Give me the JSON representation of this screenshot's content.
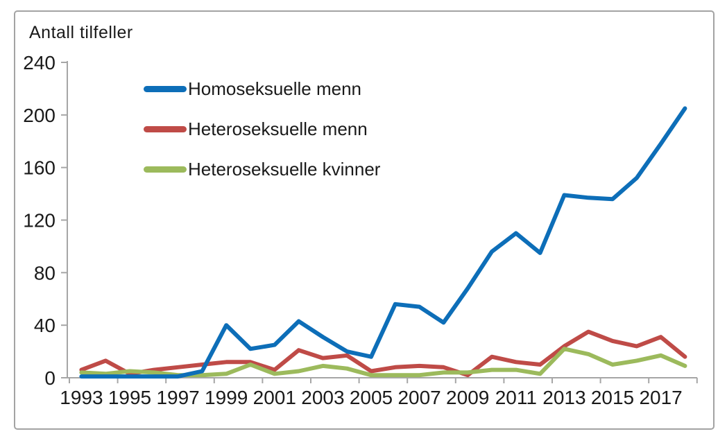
{
  "chart_data": {
    "type": "line",
    "title": "Antall tilfeller",
    "ylabel": "Antall tilfeller",
    "xlabel": "",
    "x": [
      1993,
      1994,
      1995,
      1996,
      1997,
      1998,
      1999,
      2000,
      2001,
      2002,
      2003,
      2004,
      2005,
      2006,
      2007,
      2008,
      2009,
      2010,
      2011,
      2012,
      2013,
      2014,
      2015,
      2016,
      2017,
      2018
    ],
    "x_tick_labels": [
      "1993",
      "1995",
      "1997",
      "1999",
      "2001",
      "2003",
      "2005",
      "2007",
      "2009",
      "2011",
      "2013",
      "2015",
      "2017"
    ],
    "y_ticks": [
      0,
      40,
      80,
      120,
      160,
      200,
      240
    ],
    "ylim": [
      0,
      240
    ],
    "grid": false,
    "legend_position": "upper left inside",
    "axis_color": "#a6a6a6",
    "text_color": "#1a1a1a",
    "series": [
      {
        "id": "homoseksuelle-menn",
        "name": "Homoseksuelle menn",
        "color": "#0d6eb8",
        "values": [
          1,
          1,
          1,
          1,
          1,
          5,
          40,
          22,
          25,
          43,
          31,
          20,
          16,
          56,
          54,
          42,
          68,
          96,
          110,
          95,
          139,
          137,
          136,
          152,
          178,
          205
        ]
      },
      {
        "id": "heteroseksuelle-menn",
        "name": "Heteroseksuelle menn",
        "color": "#bf4b47",
        "values": [
          6,
          13,
          3,
          6,
          8,
          10,
          12,
          12,
          6,
          21,
          15,
          17,
          5,
          8,
          9,
          8,
          2,
          16,
          12,
          10,
          24,
          35,
          28,
          24,
          31,
          16
        ]
      },
      {
        "id": "heteroseksuelle-kvinner",
        "name": "Heteroseksuelle kvinner",
        "color": "#9cba5c",
        "values": [
          4,
          3,
          5,
          4,
          2,
          2,
          3,
          10,
          3,
          5,
          9,
          7,
          2,
          2,
          2,
          4,
          4,
          6,
          6,
          3,
          22,
          18,
          10,
          13,
          17,
          9
        ]
      }
    ]
  }
}
